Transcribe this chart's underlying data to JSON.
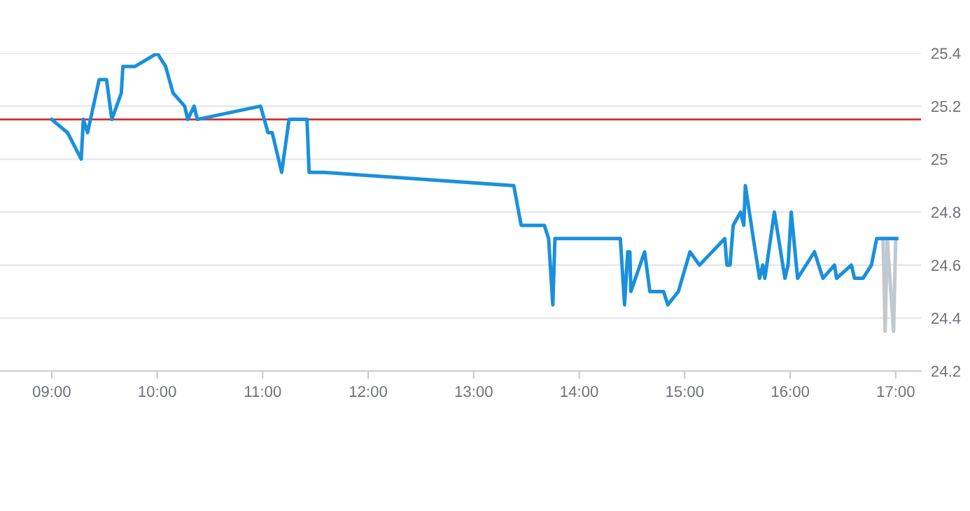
{
  "chart_data": {
    "type": "line",
    "xlim": [
      8.51,
      17.24
    ],
    "ylim": [
      24.2,
      25.4
    ],
    "xticks": [
      {
        "value": 9,
        "label": "09:00"
      },
      {
        "value": 10,
        "label": "10:00"
      },
      {
        "value": 11,
        "label": "11:00"
      },
      {
        "value": 12,
        "label": "12:00"
      },
      {
        "value": 13,
        "label": "13:00"
      },
      {
        "value": 14,
        "label": "14:00"
      },
      {
        "value": 15,
        "label": "15:00"
      },
      {
        "value": 16,
        "label": "16:00"
      },
      {
        "value": 17,
        "label": "17:00"
      }
    ],
    "yticks": [
      24.2,
      24.4,
      24.6,
      24.8,
      {
        "value": 25,
        "label": "25"
      },
      25.2,
      25.4
    ],
    "grid": "y",
    "legend": false,
    "marker": "none",
    "line_style": "solid",
    "ref_lines": [
      {
        "axis": "y",
        "value": 25.15,
        "color": "#d03030"
      }
    ],
    "series": [
      {
        "color": "#c0c8d0",
        "x": [
          16.88,
          16.9,
          16.92,
          16.98,
          17.0
        ],
        "values": [
          24.7,
          24.35,
          24.7,
          24.35,
          24.7
        ]
      },
      {
        "color": "#1a90dc",
        "x": [
          9.0,
          9.15,
          9.28,
          9.3,
          9.34,
          9.45,
          9.52,
          9.57,
          9.66,
          9.675,
          9.79,
          10.0,
          10.08,
          10.15,
          10.26,
          10.29,
          10.35,
          10.38,
          10.98,
          11.05,
          11.09,
          11.18,
          11.25,
          11.42,
          11.44,
          11.58,
          13.38,
          13.45,
          13.67,
          13.71,
          13.75,
          13.77,
          14.39,
          14.43,
          14.46,
          14.48,
          14.49,
          14.62,
          14.67,
          14.8,
          14.84,
          14.94,
          15.05,
          15.14,
          15.38,
          15.4,
          15.43,
          15.46,
          15.53,
          15.56,
          15.575,
          15.67,
          15.71,
          15.74,
          15.76,
          15.85,
          15.95,
          15.98,
          16.01,
          16.07,
          16.23,
          16.31,
          16.42,
          16.44,
          16.58,
          16.61,
          16.69,
          16.77,
          16.82,
          16.91,
          17.01
        ],
        "values": [
          25.15,
          25.1,
          25.0,
          25.15,
          25.1,
          25.3,
          25.3,
          25.15,
          25.25,
          25.35,
          25.35,
          25.4,
          25.35,
          25.25,
          25.2,
          25.15,
          25.2,
          25.15,
          25.2,
          25.1,
          25.1,
          24.95,
          25.15,
          25.15,
          24.95,
          24.95,
          24.9,
          24.75,
          24.75,
          24.7,
          24.45,
          24.7,
          24.7,
          24.45,
          24.65,
          24.65,
          24.5,
          24.65,
          24.5,
          24.5,
          24.45,
          24.5,
          24.65,
          24.6,
          24.7,
          24.6,
          24.6,
          24.75,
          24.8,
          24.75,
          24.9,
          24.65,
          24.55,
          24.6,
          24.55,
          24.8,
          24.55,
          24.6,
          24.8,
          24.55,
          24.65,
          24.55,
          24.6,
          24.55,
          24.6,
          24.55,
          24.55,
          24.6,
          24.7,
          24.7,
          24.7
        ]
      }
    ]
  }
}
